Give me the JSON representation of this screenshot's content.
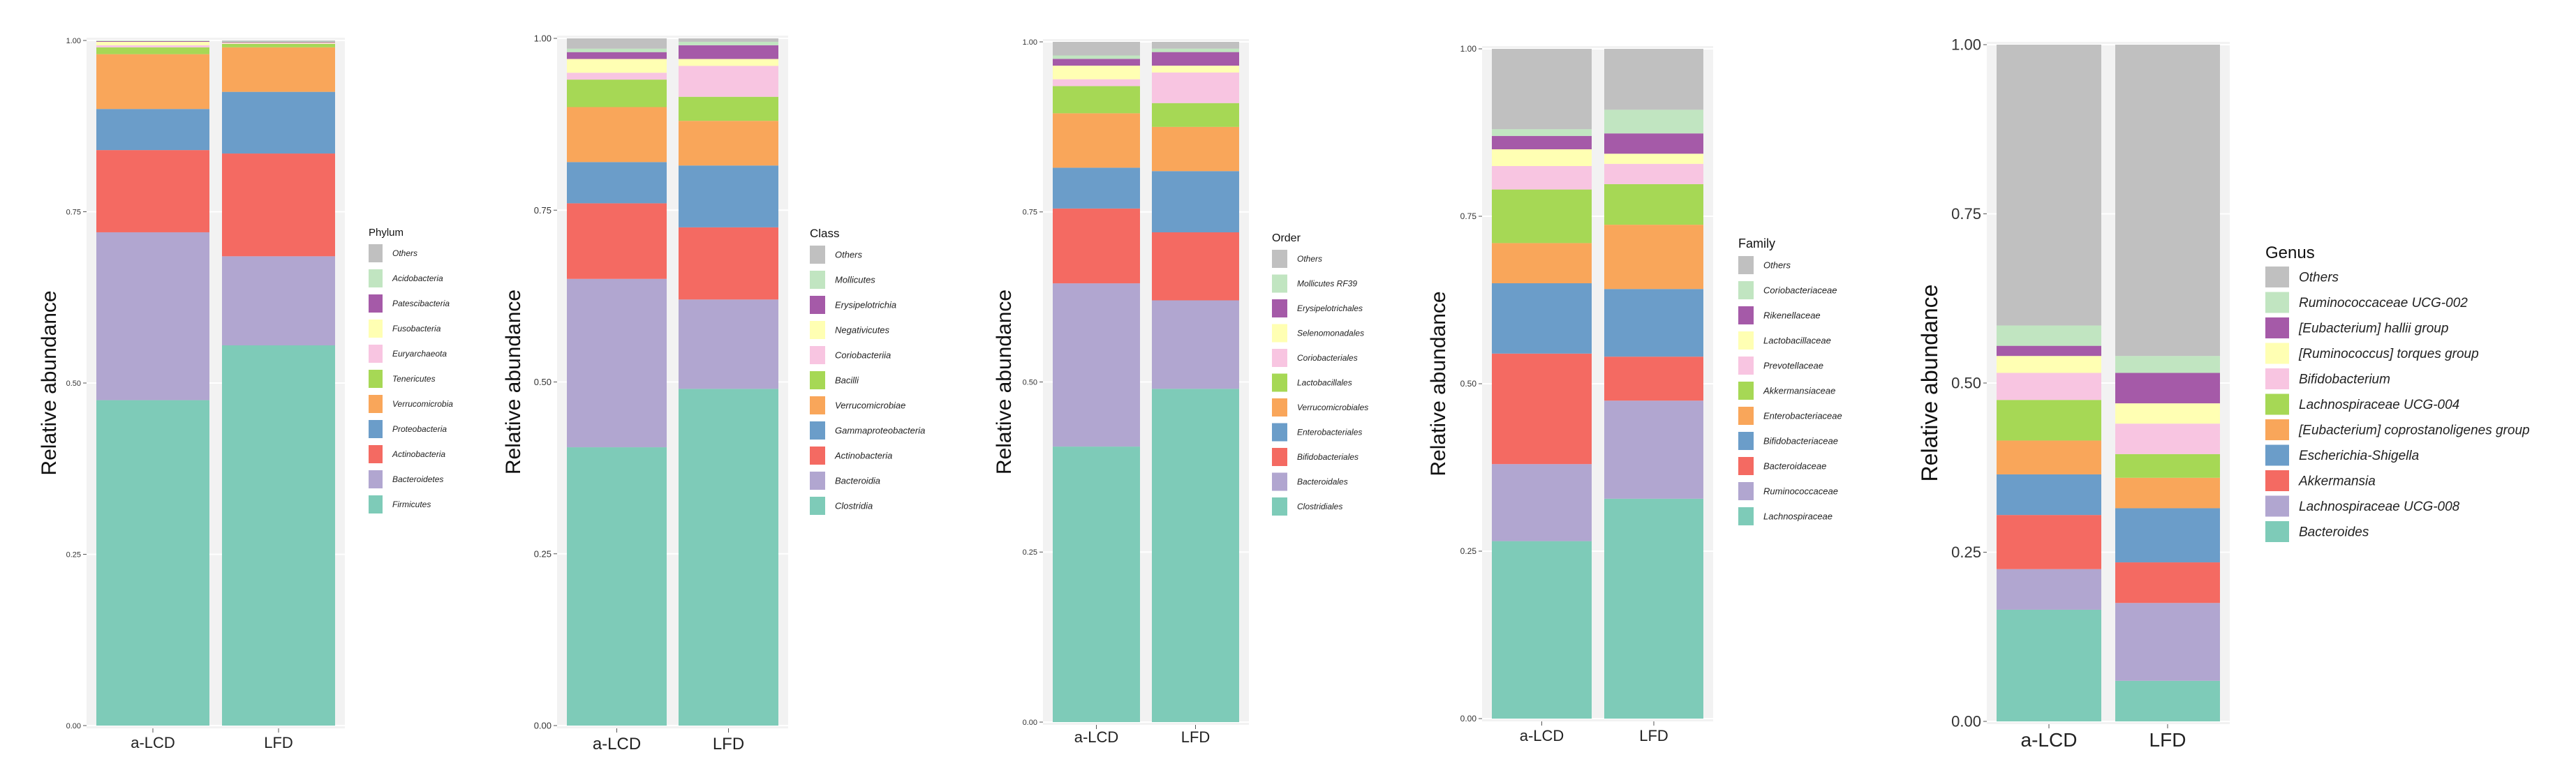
{
  "ylabel": "Relative abundance",
  "colors": {
    "Others": "#c0c0c0",
    "light_green": "#c1e5c1",
    "purple": "#a55aa8",
    "yellow": "#ffffb3",
    "pink": "#f8c5e1",
    "green": "#a6d855",
    "orange": "#f9a65a",
    "blue": "#6b9dc9",
    "red": "#f46a62",
    "lavender": "#b1a6d0",
    "teal": "#7ecbb8"
  },
  "chart_data": [
    {
      "type": "stacked-bar",
      "title": "",
      "xlabel": "",
      "ylabel": "Relative abundance",
      "legend_title": "Phylum",
      "categories": [
        "a-LCD",
        "LFD"
      ],
      "yticks": [
        "0.00",
        "0.25",
        "0.50",
        "0.75",
        "1.00"
      ],
      "ylim": [
        0,
        1
      ],
      "series": [
        {
          "name": "Firmicutes",
          "color": "#7ecbb8",
          "values": [
            0.475,
            0.555
          ]
        },
        {
          "name": "Bacteroidetes",
          "color": "#b1a6d0",
          "values": [
            0.245,
            0.13
          ]
        },
        {
          "name": "Actinobacteria",
          "color": "#f46a62",
          "values": [
            0.12,
            0.15
          ]
        },
        {
          "name": "Proteobacteria",
          "color": "#6b9dc9",
          "values": [
            0.06,
            0.09
          ]
        },
        {
          "name": "Verrucomicrobia",
          "color": "#f9a65a",
          "values": [
            0.08,
            0.065
          ]
        },
        {
          "name": "Tenericutes",
          "color": "#a6d855",
          "values": [
            0.01,
            0.005
          ]
        },
        {
          "name": "Euryarchaeota",
          "color": "#f8c5e1",
          "values": [
            0.003,
            0.001
          ]
        },
        {
          "name": "Fusobacteria",
          "color": "#ffffb3",
          "values": [
            0.005,
            0.001
          ]
        },
        {
          "name": "Patescibacteria",
          "color": "#a55aa8",
          "values": [
            0.001,
            0.001
          ]
        },
        {
          "name": "Acidobacteria",
          "color": "#c1e5c1",
          "values": [
            0.001,
            0.001
          ]
        },
        {
          "name": "Others",
          "color": "#c0c0c0",
          "values": [
            0.0,
            0.001
          ]
        }
      ]
    },
    {
      "type": "stacked-bar",
      "title": "",
      "xlabel": "",
      "ylabel": "Relative abundance",
      "legend_title": "Class",
      "categories": [
        "a-LCD",
        "LFD"
      ],
      "yticks": [
        "0.00",
        "0.25",
        "0.50",
        "0.75",
        "1.00"
      ],
      "ylim": [
        0,
        1
      ],
      "series": [
        {
          "name": "Clostridia",
          "color": "#7ecbb8",
          "values": [
            0.405,
            0.49
          ]
        },
        {
          "name": "Bacteroidia",
          "color": "#b1a6d0",
          "values": [
            0.245,
            0.13
          ]
        },
        {
          "name": "Actinobacteria",
          "color": "#f46a62",
          "values": [
            0.11,
            0.105
          ]
        },
        {
          "name": "Gammaproteobacteria",
          "color": "#6b9dc9",
          "values": [
            0.06,
            0.09
          ]
        },
        {
          "name": "Verrucomicrobiae",
          "color": "#f9a65a",
          "values": [
            0.08,
            0.065
          ]
        },
        {
          "name": "Bacilli",
          "color": "#a6d855",
          "values": [
            0.04,
            0.035
          ]
        },
        {
          "name": "Coriobacteriia",
          "color": "#f8c5e1",
          "values": [
            0.01,
            0.045
          ]
        },
        {
          "name": "Negativicutes",
          "color": "#ffffb3",
          "values": [
            0.02,
            0.01
          ]
        },
        {
          "name": "Erysipelotrichia",
          "color": "#a55aa8",
          "values": [
            0.01,
            0.02
          ]
        },
        {
          "name": "Mollicutes",
          "color": "#c1e5c1",
          "values": [
            0.005,
            0.005
          ]
        },
        {
          "name": "Others",
          "color": "#c0c0c0",
          "values": [
            0.015,
            0.005
          ]
        }
      ]
    },
    {
      "type": "stacked-bar",
      "title": "",
      "xlabel": "",
      "ylabel": "Relative abundance",
      "legend_title": "Order",
      "categories": [
        "a-LCD",
        "LFD"
      ],
      "yticks": [
        "0.00",
        "0.25",
        "0.50",
        "0.75",
        "1.00"
      ],
      "ylim": [
        0,
        1
      ],
      "series": [
        {
          "name": "Clostridiales",
          "color": "#7ecbb8",
          "values": [
            0.405,
            0.49
          ]
        },
        {
          "name": "Bacteroidales",
          "color": "#b1a6d0",
          "values": [
            0.24,
            0.13
          ]
        },
        {
          "name": "Bifidobacteriales",
          "color": "#f46a62",
          "values": [
            0.11,
            0.1
          ]
        },
        {
          "name": "Enterobacteriales",
          "color": "#6b9dc9",
          "values": [
            0.06,
            0.09
          ]
        },
        {
          "name": "Verrucomicrobiales",
          "color": "#f9a65a",
          "values": [
            0.08,
            0.065
          ]
        },
        {
          "name": "Lactobacillales",
          "color": "#a6d855",
          "values": [
            0.04,
            0.035
          ]
        },
        {
          "name": "Coriobacteriales",
          "color": "#f8c5e1",
          "values": [
            0.01,
            0.045
          ]
        },
        {
          "name": "Selenomonadales",
          "color": "#ffffb3",
          "values": [
            0.02,
            0.01
          ]
        },
        {
          "name": "Erysipelotrichales",
          "color": "#a55aa8",
          "values": [
            0.01,
            0.02
          ]
        },
        {
          "name": "Mollicutes RF39",
          "color": "#c1e5c1",
          "values": [
            0.005,
            0.005
          ]
        },
        {
          "name": "Others",
          "color": "#c0c0c0",
          "values": [
            0.02,
            0.01
          ]
        }
      ]
    },
    {
      "type": "stacked-bar",
      "title": "",
      "xlabel": "",
      "ylabel": "Relative abundance",
      "legend_title": "Family",
      "categories": [
        "a-LCD",
        "LFD"
      ],
      "yticks": [
        "0.00",
        "0.25",
        "0.50",
        "0.75",
        "1.00"
      ],
      "ylim": [
        0,
        1
      ],
      "series": [
        {
          "name": "Lachnospiraceae",
          "color": "#7ecbb8",
          "values": [
            0.265,
            0.325
          ]
        },
        {
          "name": "Ruminococcaceae",
          "color": "#b1a6d0",
          "values": [
            0.115,
            0.145
          ]
        },
        {
          "name": "Bacteroidaceae",
          "color": "#f46a62",
          "values": [
            0.165,
            0.065
          ]
        },
        {
          "name": "Bifidobacteriaceae",
          "color": "#6b9dc9",
          "values": [
            0.105,
            0.1
          ]
        },
        {
          "name": "Enterobacteriaceae",
          "color": "#f9a65a",
          "values": [
            0.06,
            0.095
          ]
        },
        {
          "name": "Akkermansiaceae",
          "color": "#a6d855",
          "values": [
            0.08,
            0.06
          ]
        },
        {
          "name": "Prevotellaceae",
          "color": "#f8c5e1",
          "values": [
            0.035,
            0.03
          ]
        },
        {
          "name": "Lactobacillaceae",
          "color": "#ffffb3",
          "values": [
            0.025,
            0.015
          ]
        },
        {
          "name": "Rikenellaceae",
          "color": "#a55aa8",
          "values": [
            0.02,
            0.03
          ]
        },
        {
          "name": "Coriobacteriaceae",
          "color": "#c1e5c1",
          "values": [
            0.01,
            0.035
          ]
        },
        {
          "name": "Others",
          "color": "#c0c0c0",
          "values": [
            0.12,
            0.09
          ]
        }
      ]
    },
    {
      "type": "stacked-bar",
      "title": "",
      "xlabel": "",
      "ylabel": "Relative abundance",
      "legend_title": "Genus",
      "categories": [
        "a-LCD",
        "LFD"
      ],
      "yticks": [
        "0.00",
        "0.25",
        "0.50",
        "0.75",
        "1.00"
      ],
      "ylim": [
        0,
        1
      ],
      "series": [
        {
          "name": "Bacteroides",
          "color": "#7ecbb8",
          "values": [
            0.165,
            0.06
          ]
        },
        {
          "name": "Lachnospiraceae UCG-008",
          "color": "#b1a6d0",
          "values": [
            0.06,
            0.115
          ]
        },
        {
          "name": "Akkermansia",
          "color": "#f46a62",
          "values": [
            0.08,
            0.06
          ]
        },
        {
          "name": "Escherichia-Shigella",
          "color": "#6b9dc9",
          "values": [
            0.06,
            0.08
          ]
        },
        {
          "name": "[Eubacterium] coprostanoligenes group",
          "color": "#f9a65a",
          "values": [
            0.05,
            0.045
          ]
        },
        {
          "name": "Lachnospiraceae UCG-004",
          "color": "#a6d855",
          "values": [
            0.06,
            0.035
          ]
        },
        {
          "name": "Bifidobacterium",
          "color": "#f8c5e1",
          "values": [
            0.04,
            0.045
          ]
        },
        {
          "name": "[Ruminococcus] torques group",
          "color": "#ffffb3",
          "values": [
            0.025,
            0.03
          ]
        },
        {
          "name": "[Eubacterium] hallii group",
          "color": "#a55aa8",
          "values": [
            0.015,
            0.045
          ]
        },
        {
          "name": "Ruminococcaceae UCG-002",
          "color": "#c1e5c1",
          "values": [
            0.03,
            0.025
          ]
        },
        {
          "name": "Others",
          "color": "#c0c0c0",
          "values": [
            0.415,
            0.46
          ]
        }
      ]
    }
  ]
}
